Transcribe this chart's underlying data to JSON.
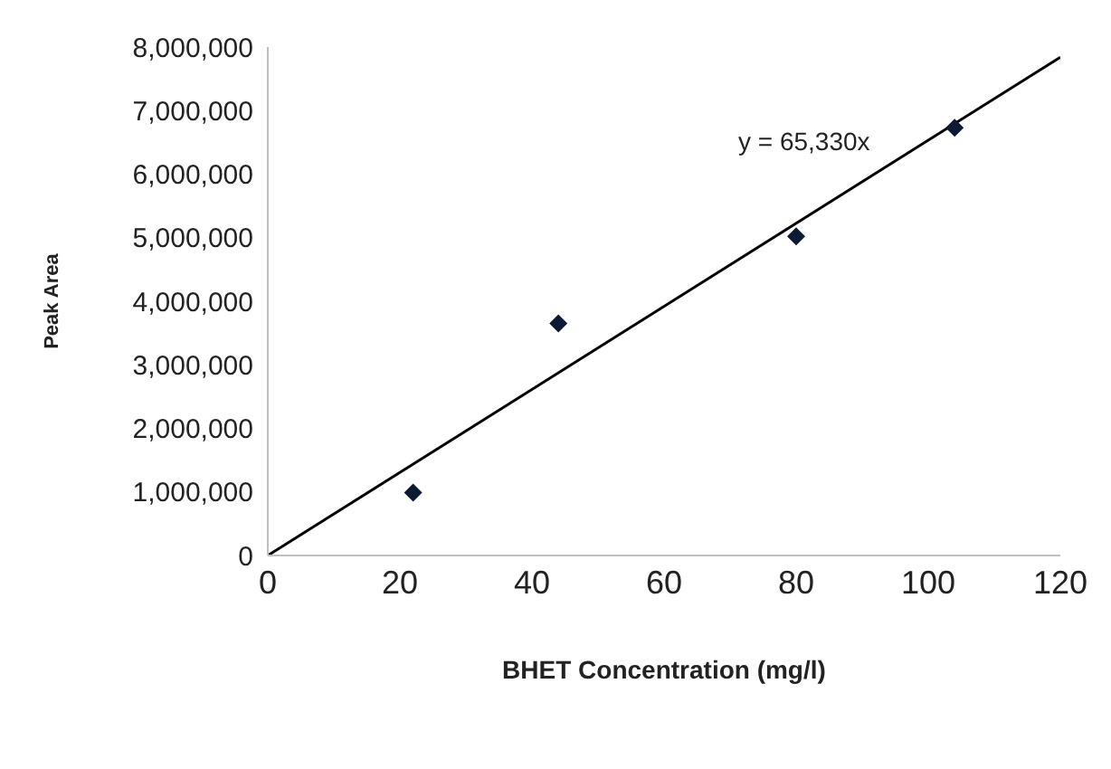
{
  "chart_data": {
    "type": "scatter",
    "xlabel": "BHET Concentration (mg/l)",
    "ylabel": "Peak Area",
    "series": [
      {
        "color": "#0d1a33",
        "x": [
          22,
          44,
          80,
          104
        ],
        "values": [
          990000,
          3650000,
          5020000,
          6730000
        ],
        "marker": "diamond"
      },
      {
        "type": "line",
        "color": "#000000",
        "x": [
          0,
          120
        ],
        "values": [
          0,
          7840000
        ],
        "marker": "none",
        "line_style": "solid"
      }
    ],
    "annotations": [
      "y = 65,330x"
    ],
    "xlim": [
      0,
      120
    ],
    "xticks": [
      0,
      20,
      40,
      60,
      80,
      100,
      120
    ],
    "ylim": [
      0,
      8000000
    ],
    "yticks": [
      0,
      {
        "value": 1000000,
        "label": "1,000,000"
      },
      {
        "value": 2000000,
        "label": "2,000,000"
      },
      {
        "value": 3000000,
        "label": "3,000,000"
      },
      {
        "value": 4000000,
        "label": "4,000,000"
      },
      {
        "value": 5000000,
        "label": "5,000,000"
      },
      {
        "value": 6000000,
        "label": "6,000,000"
      },
      {
        "value": 7000000,
        "label": "7,000,000"
      },
      {
        "value": 8000000,
        "label": "8,000,000"
      }
    ],
    "grid": false,
    "legend": false
  }
}
